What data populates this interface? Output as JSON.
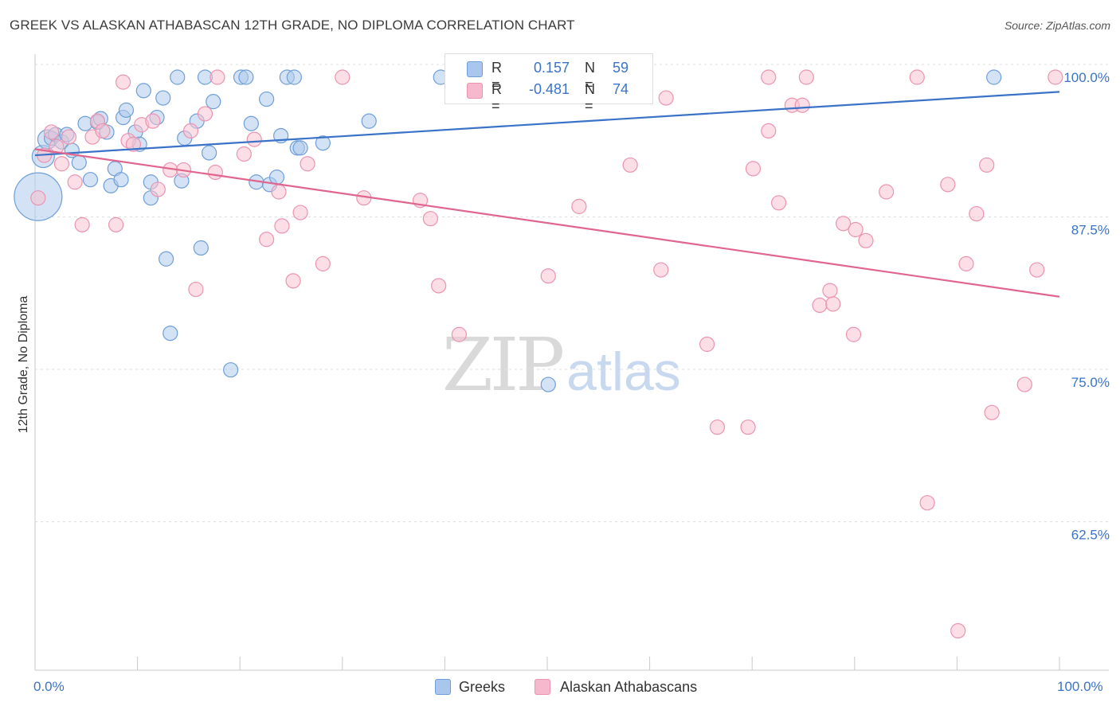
{
  "header": {
    "title": "GREEK VS ALASKAN ATHABASCAN 12TH GRADE, NO DIPLOMA CORRELATION CHART",
    "source": "Source: ZipAtlas.com"
  },
  "watermark": {
    "zip": "ZIP",
    "atlas": "atlas"
  },
  "legend": {
    "r_label": "R =",
    "n_label": "N =",
    "series": [
      {
        "r": "0.157",
        "n": "59",
        "color": "#a9c6ec"
      },
      {
        "r": "-0.481",
        "n": "74",
        "color": "#f6b8cc"
      }
    ]
  },
  "colors": {
    "blue_fill": "#aecbeb",
    "blue_stroke": "#6f9fd8",
    "blue_line": "#3a72c8",
    "pink_fill": "#f7c2d2",
    "pink_stroke": "#ec93b0",
    "pink_line": "#e0658f",
    "axis_text": "#3b73c8",
    "grid": "#dddddd"
  },
  "chart_data": {
    "type": "scatter",
    "title": "GREEK VS ALASKAN ATHABASCAN 12TH GRADE, NO DIPLOMA CORRELATION CHART",
    "xlabel": "",
    "ylabel": "12th Grade, No Diploma",
    "x_tick_labels": [
      "0.0%",
      "100.0%"
    ],
    "y_tick_labels": [
      "100.0%",
      "87.5%",
      "75.0%",
      "62.5%"
    ],
    "y_ticks": [
      100.0,
      87.5,
      75.0,
      62.5
    ],
    "xlim": [
      0,
      100
    ],
    "ylim": [
      51.5,
      101.5
    ],
    "grid": true,
    "legend_position": "top-center",
    "series": [
      {
        "name": "Greeks",
        "r": 0.157,
        "n": 59,
        "trend": [
          [
            0,
            93.6
          ],
          [
            100,
            98.8
          ]
        ],
        "points": [
          [
            0.3,
            90.2,
            30
          ],
          [
            0.8,
            93.5,
            14
          ],
          [
            1.2,
            94.9,
            12
          ],
          [
            1.6,
            95.0,
            9
          ],
          [
            2.0,
            95.3,
            9
          ],
          [
            2.6,
            94.7,
            9
          ],
          [
            3.1,
            95.3,
            9
          ],
          [
            3.6,
            94.0,
            9
          ],
          [
            4.3,
            93.0,
            9
          ],
          [
            4.9,
            96.2,
            9
          ],
          [
            5.4,
            91.6,
            9
          ],
          [
            6.1,
            96.3,
            9
          ],
          [
            6.4,
            96.6,
            9
          ],
          [
            7.0,
            95.5,
            9
          ],
          [
            7.4,
            91.1,
            9
          ],
          [
            7.8,
            92.5,
            9
          ],
          [
            8.4,
            91.6,
            9
          ],
          [
            8.6,
            96.7,
            9
          ],
          [
            8.9,
            97.3,
            9
          ],
          [
            9.8,
            95.5,
            9
          ],
          [
            10.2,
            94.5,
            9
          ],
          [
            10.6,
            98.9,
            9
          ],
          [
            11.3,
            91.4,
            9
          ],
          [
            11.3,
            90.1,
            9
          ],
          [
            11.9,
            96.7,
            9
          ],
          [
            12.5,
            98.3,
            9
          ],
          [
            12.8,
            85.1,
            9
          ],
          [
            13.2,
            79.0,
            9
          ],
          [
            13.9,
            100.0,
            9
          ],
          [
            14.3,
            91.5,
            9
          ],
          [
            14.6,
            95.0,
            9
          ],
          [
            15.8,
            96.4,
            9
          ],
          [
            16.2,
            86.0,
            9
          ],
          [
            16.6,
            100.0,
            9
          ],
          [
            17.0,
            93.8,
            9
          ],
          [
            17.4,
            98.0,
            9
          ],
          [
            19.1,
            76.0,
            9
          ],
          [
            20.1,
            100.0,
            9
          ],
          [
            20.6,
            100.0,
            9
          ],
          [
            21.1,
            96.2,
            9
          ],
          [
            21.6,
            91.4,
            9
          ],
          [
            22.6,
            98.2,
            9
          ],
          [
            22.9,
            91.2,
            9
          ],
          [
            23.6,
            91.8,
            9
          ],
          [
            24.0,
            95.2,
            9
          ],
          [
            24.6,
            100.0,
            9
          ],
          [
            25.3,
            100.0,
            9
          ],
          [
            25.6,
            94.2,
            9
          ],
          [
            25.9,
            94.2,
            9
          ],
          [
            28.1,
            94.6,
            9
          ],
          [
            32.6,
            96.4,
            9
          ],
          [
            39.6,
            100.0,
            9
          ],
          [
            41.1,
            100.0,
            9
          ],
          [
            46.1,
            100.0,
            9
          ],
          [
            47.6,
            100.0,
            9
          ],
          [
            48.9,
            100.0,
            9
          ],
          [
            50.1,
            100.0,
            9
          ],
          [
            50.1,
            74.8,
            9
          ],
          [
            93.6,
            100.0,
            9
          ]
        ]
      },
      {
        "name": "Alaskan Athabascans",
        "r": -0.481,
        "n": 74,
        "trend": [
          [
            0,
            94.1
          ],
          [
            100,
            82.0
          ]
        ],
        "points": [
          [
            0.3,
            90.1,
            9
          ],
          [
            0.9,
            93.6,
            9
          ],
          [
            1.6,
            95.5,
            9
          ],
          [
            2.1,
            94.3,
            9
          ],
          [
            2.6,
            92.9,
            9
          ],
          [
            3.3,
            95.1,
            9
          ],
          [
            3.9,
            91.4,
            9
          ],
          [
            4.6,
            87.9,
            9
          ],
          [
            5.6,
            95.1,
            9
          ],
          [
            6.1,
            96.4,
            9
          ],
          [
            6.6,
            95.6,
            9
          ],
          [
            7.9,
            87.9,
            9
          ],
          [
            8.6,
            99.6,
            9
          ],
          [
            9.1,
            94.8,
            9
          ],
          [
            9.6,
            94.5,
            9
          ],
          [
            10.4,
            96.1,
            9
          ],
          [
            11.5,
            96.4,
            9
          ],
          [
            12.0,
            90.8,
            9
          ],
          [
            13.2,
            92.4,
            9
          ],
          [
            14.5,
            92.4,
            9
          ],
          [
            15.2,
            95.6,
            9
          ],
          [
            15.7,
            82.6,
            9
          ],
          [
            16.6,
            97.0,
            9
          ],
          [
            17.6,
            92.2,
            9
          ],
          [
            17.8,
            100.0,
            9
          ],
          [
            20.4,
            93.7,
            9
          ],
          [
            21.4,
            94.9,
            9
          ],
          [
            22.6,
            86.7,
            9
          ],
          [
            23.8,
            90.6,
            9
          ],
          [
            24.1,
            87.8,
            9
          ],
          [
            25.2,
            83.3,
            9
          ],
          [
            25.9,
            88.9,
            9
          ],
          [
            26.6,
            92.9,
            9
          ],
          [
            28.1,
            84.7,
            9
          ],
          [
            30.0,
            100.0,
            9
          ],
          [
            32.1,
            90.1,
            9
          ],
          [
            37.6,
            89.9,
            9
          ],
          [
            38.6,
            88.4,
            9
          ],
          [
            39.4,
            82.9,
            9
          ],
          [
            41.4,
            78.9,
            9
          ],
          [
            50.1,
            83.7,
            9
          ],
          [
            53.1,
            89.4,
            9
          ],
          [
            58.1,
            92.8,
            9
          ],
          [
            61.1,
            84.2,
            9
          ],
          [
            61.6,
            98.3,
            9
          ],
          [
            65.6,
            78.1,
            9
          ],
          [
            66.6,
            71.3,
            9
          ],
          [
            69.6,
            71.3,
            9
          ],
          [
            70.1,
            92.5,
            9
          ],
          [
            71.6,
            100.0,
            9
          ],
          [
            71.6,
            95.6,
            9
          ],
          [
            72.6,
            89.7,
            9
          ],
          [
            73.9,
            97.7,
            9
          ],
          [
            74.9,
            97.7,
            9
          ],
          [
            75.3,
            100.0,
            9
          ],
          [
            76.6,
            81.3,
            9
          ],
          [
            77.6,
            82.5,
            9
          ],
          [
            77.9,
            81.4,
            9
          ],
          [
            78.9,
            88.0,
            9
          ],
          [
            79.9,
            78.9,
            9
          ],
          [
            80.1,
            87.5,
            9
          ],
          [
            81.1,
            86.6,
            9
          ],
          [
            83.1,
            90.6,
            9
          ],
          [
            86.1,
            100.0,
            9
          ],
          [
            87.1,
            65.1,
            9
          ],
          [
            89.1,
            91.2,
            9
          ],
          [
            90.1,
            54.6,
            9
          ],
          [
            90.9,
            84.7,
            9
          ],
          [
            91.9,
            88.8,
            9
          ],
          [
            92.9,
            92.8,
            9
          ],
          [
            93.4,
            72.5,
            9
          ],
          [
            96.6,
            74.8,
            9
          ],
          [
            97.8,
            84.2,
            9
          ],
          [
            99.6,
            100.0,
            9
          ]
        ]
      }
    ]
  }
}
